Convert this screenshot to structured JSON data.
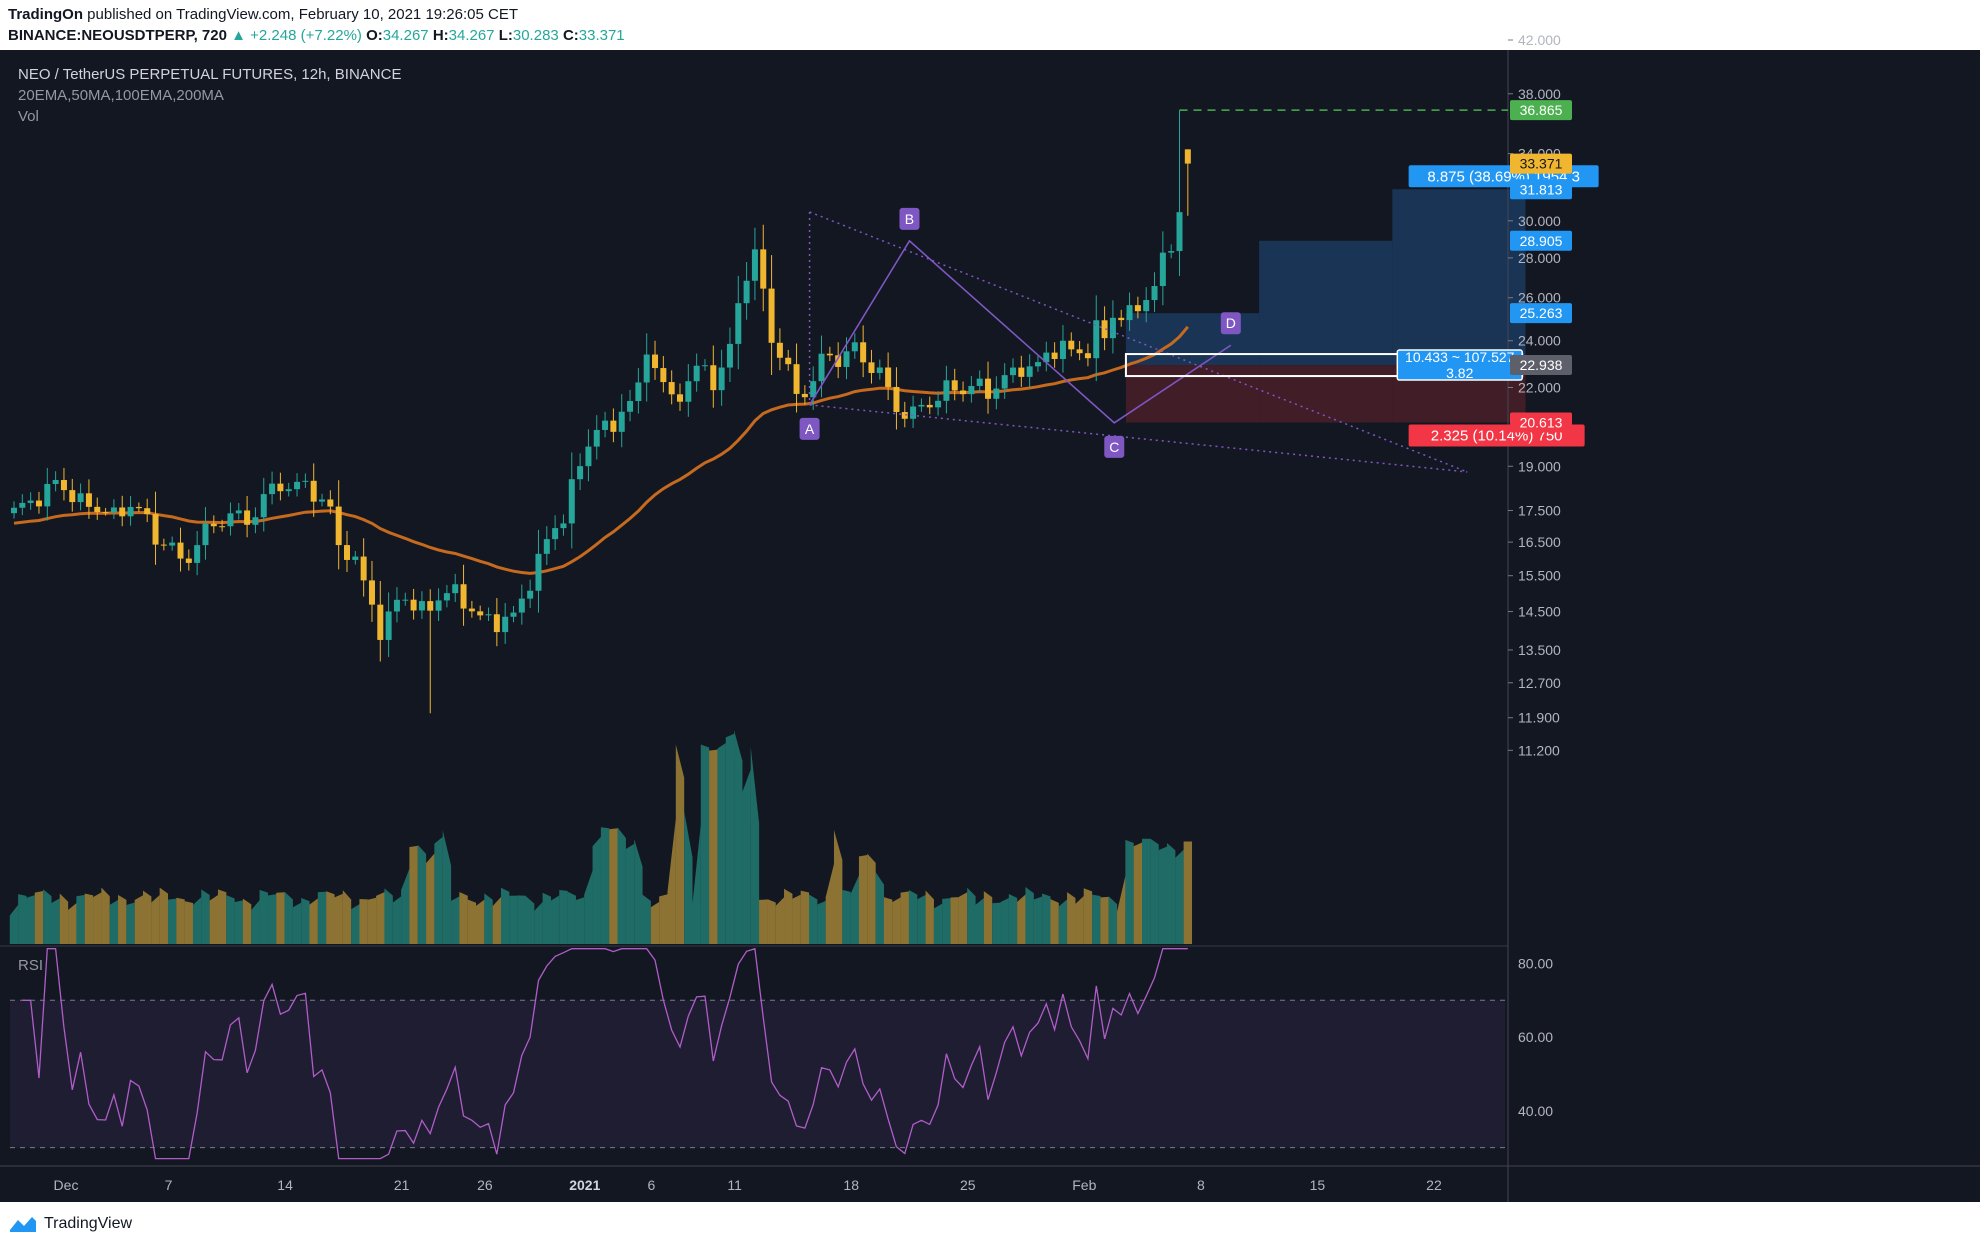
{
  "header": {
    "publisher": "TradingOn",
    "published_text": "published on TradingView.com, February 10, 2021 19:26:05 CET",
    "symbol": "BINANCE:NEOUSDTPERP, 720",
    "change": "+2.248 (+7.22%)",
    "o_label": "O:",
    "o": "34.267",
    "h_label": "H:",
    "h": "34.267",
    "l_label": "L:",
    "l": "30.283",
    "c_label": "C:",
    "c": "33.371"
  },
  "legend": {
    "title": "NEO / TetherUS PERPETUAL FUTURES, 12h, BINANCE",
    "indicators": "20EMA,50MA,100EMA,200MA",
    "vol": "Vol",
    "rsi": "RSI"
  },
  "footer": {
    "brand": "TradingView"
  },
  "colors": {
    "bg": "#131722",
    "up": "#26a69a",
    "down": "#f0b62f",
    "ma": "#c56a1e",
    "pattern": "#7e57c2",
    "rsi": "#b05dc8",
    "target_zone": "#1c3a5e",
    "stop_zone": "#4a1f28"
  },
  "chart_data": {
    "type": "candlestick",
    "title": "NEO / TetherUS PERPETUAL FUTURES, 12h, BINANCE",
    "price_axis": {
      "scale": "log",
      "ticks": [
        "42.000",
        "38.000",
        "34.000",
        "30.000",
        "28.000",
        "26.000",
        "24.000",
        "22.000",
        "19.000",
        "17.500",
        "16.500",
        "15.500",
        "14.500",
        "13.500",
        "12.700",
        "11.900",
        "11.200"
      ],
      "range": [
        11.0,
        42.0
      ]
    },
    "x_axis": {
      "ticks": [
        "Dec",
        "7",
        "14",
        "21",
        "26",
        "2021",
        "6",
        "11",
        "18",
        "25",
        "Feb",
        "8",
        "15",
        "22"
      ],
      "bold_ticks": [
        "2021"
      ]
    },
    "price_labels": [
      {
        "value": "36.865",
        "color": "#4caf50",
        "text_color": "#ffffff"
      },
      {
        "value": "33.371",
        "color": "#f0b62f",
        "text_color": "#131722"
      },
      {
        "value": "31.813",
        "color": "#2196f3",
        "text_color": "#ffffff"
      },
      {
        "value": "28.905",
        "color": "#2196f3",
        "text_color": "#ffffff"
      },
      {
        "value": "25.263",
        "color": "#2196f3",
        "text_color": "#ffffff"
      },
      {
        "value": "22.938",
        "color": "#5d606b",
        "text_color": "#ffffff"
      },
      {
        "value": "20.613",
        "color": "#f23645",
        "text_color": "#ffffff"
      }
    ],
    "position_tool": {
      "target_text": "8.875 (38.69%) 1954.3",
      "stop_text": "2.325 (10.14%) 750",
      "center_line1": "10.433 ~ 107.527",
      "center_line2": "3.82",
      "entry": 22.938,
      "target": 31.813,
      "stop": 20.613
    },
    "pattern_points": [
      {
        "label": "A",
        "price": 21.3
      },
      {
        "label": "B",
        "price": 28.9
      },
      {
        "label": "C",
        "price": 20.6
      },
      {
        "label": "D",
        "price": 23.8
      }
    ],
    "high_line": 36.865,
    "series": [
      {
        "name": "Price",
        "ohlc": []
      },
      {
        "name": "100EMA"
      },
      {
        "name": "Vol"
      },
      {
        "name": "RSI",
        "ticks": [
          "80.00",
          "60.00",
          "40.00"
        ],
        "bands": [
          70,
          30
        ],
        "range": [
          25,
          85
        ]
      }
    ]
  }
}
